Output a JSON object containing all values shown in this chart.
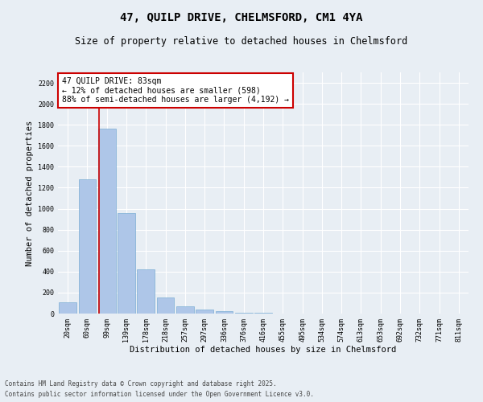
{
  "title_line1": "47, QUILP DRIVE, CHELMSFORD, CM1 4YA",
  "title_line2": "Size of property relative to detached houses in Chelmsford",
  "xlabel": "Distribution of detached houses by size in Chelmsford",
  "ylabel": "Number of detached properties",
  "categories": [
    "20sqm",
    "60sqm",
    "99sqm",
    "139sqm",
    "178sqm",
    "218sqm",
    "257sqm",
    "297sqm",
    "336sqm",
    "376sqm",
    "416sqm",
    "455sqm",
    "495sqm",
    "534sqm",
    "574sqm",
    "613sqm",
    "653sqm",
    "692sqm",
    "732sqm",
    "771sqm",
    "811sqm"
  ],
  "values": [
    110,
    1280,
    1760,
    960,
    420,
    155,
    70,
    35,
    20,
    10,
    5,
    3,
    2,
    1,
    1,
    0,
    0,
    0,
    0,
    0,
    0
  ],
  "bar_color": "#aec6e8",
  "bar_edge_color": "#7aadd4",
  "vline_color": "#cc0000",
  "annotation_text": "47 QUILP DRIVE: 83sqm\n← 12% of detached houses are smaller (598)\n88% of semi-detached houses are larger (4,192) →",
  "annotation_box_color": "#ffffff",
  "annotation_box_edgecolor": "#cc0000",
  "ylim": [
    0,
    2300
  ],
  "yticks": [
    0,
    200,
    400,
    600,
    800,
    1000,
    1200,
    1400,
    1600,
    1800,
    2000,
    2200
  ],
  "background_color": "#e8eef4",
  "grid_color": "#ffffff",
  "footer_line1": "Contains HM Land Registry data © Crown copyright and database right 2025.",
  "footer_line2": "Contains public sector information licensed under the Open Government Licence v3.0.",
  "title_fontsize": 10,
  "subtitle_fontsize": 8.5,
  "tick_fontsize": 6,
  "label_fontsize": 7.5,
  "annotation_fontsize": 7,
  "footer_fontsize": 5.5
}
